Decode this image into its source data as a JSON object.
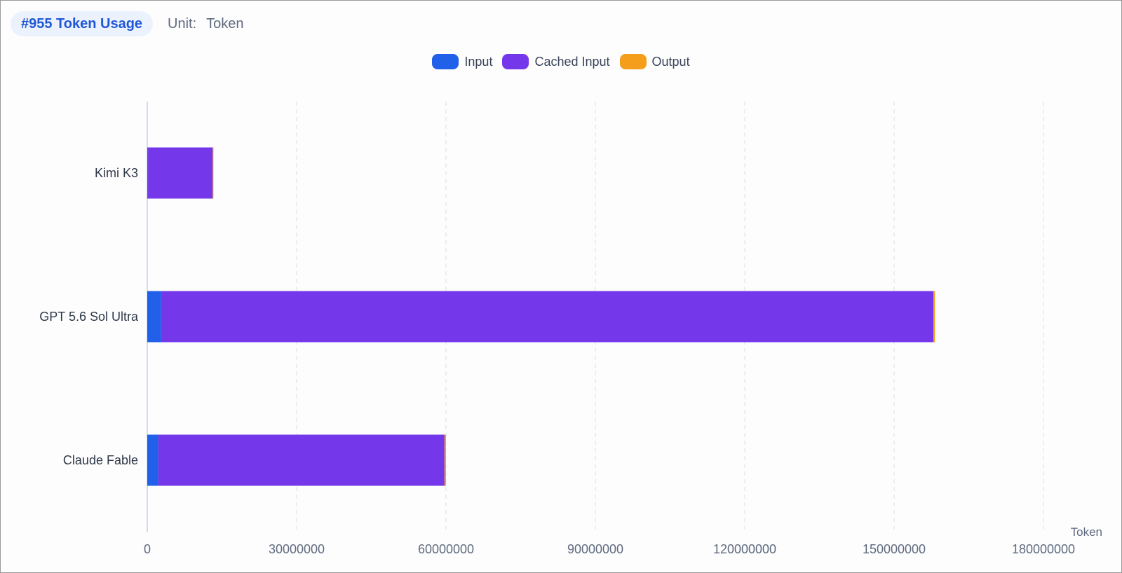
{
  "header": {
    "title": "#955 Token Usage",
    "unit_label": "Unit:",
    "unit_value": "Token"
  },
  "colors": {
    "input": "#2160e8",
    "cached_input": "#7438ea",
    "output": "#f59e1b",
    "grid": "#dfe4ec",
    "axis": "#c4d2ea"
  },
  "chart_data": {
    "type": "bar",
    "orientation": "horizontal",
    "stacked": true,
    "categories": [
      "Kimi K3",
      "GPT 5.6 Sol Ultra",
      "Claude Fable"
    ],
    "series": [
      {
        "name": "Input",
        "color": "#2160e8",
        "values": [
          150000,
          2800000,
          2200000
        ]
      },
      {
        "name": "Cached Input",
        "color": "#7438ea",
        "values": [
          13000000,
          155100000,
          57500000
        ]
      },
      {
        "name": "Output",
        "color": "#f59e1b",
        "values": [
          100000,
          300000,
          300000
        ]
      }
    ],
    "xaxis": {
      "label": "Token",
      "ticks": [
        "0",
        "30000000",
        "60000000",
        "90000000",
        "120000000",
        "150000000",
        "180000000"
      ],
      "range": [
        0,
        180000000
      ]
    },
    "grid": true,
    "legend_position": "top-center"
  }
}
